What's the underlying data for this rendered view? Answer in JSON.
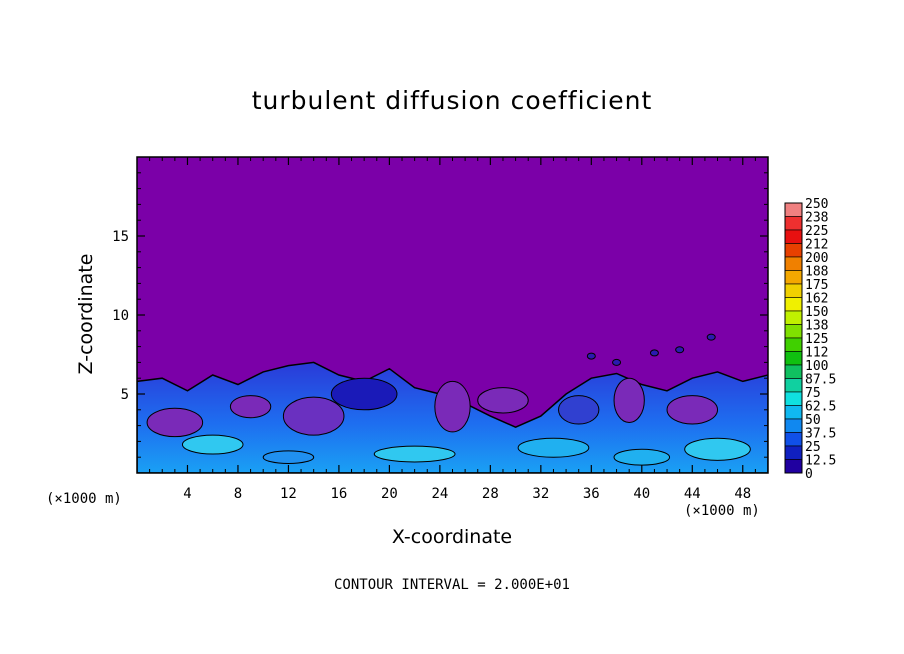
{
  "chart_data": {
    "type": "heatmap",
    "title": "turbulent diffusion coefficient",
    "xlabel": "X-coordinate",
    "ylabel": "Z-coordinate",
    "x_unit": "(×1000 m)",
    "x_unit_right": "(×1000 m)",
    "xlim": [
      0,
      50
    ],
    "ylim": [
      0,
      20
    ],
    "x_ticks": [
      4,
      8,
      12,
      16,
      20,
      24,
      28,
      32,
      36,
      40,
      44,
      48
    ],
    "y_ticks": [
      5,
      10,
      15
    ],
    "contour_interval_text": "CONTOUR INTERVAL = 2.000E+01",
    "colorbar": {
      "labels": [
        "250",
        "238",
        "225",
        "212",
        "200",
        "188",
        "175",
        "162",
        "150",
        "138",
        "125",
        "112",
        "100",
        "87.5",
        "75",
        "62.5",
        "50",
        "37.5",
        "25",
        "12.5",
        "0"
      ],
      "colors": [
        "#f08080",
        "#ee3030",
        "#e81010",
        "#e84000",
        "#f08000",
        "#f4a800",
        "#f0d000",
        "#f0f000",
        "#c0f000",
        "#80e000",
        "#40d000",
        "#10c010",
        "#10c060",
        "#10d0a0",
        "#10e0e0",
        "#10b8f0",
        "#1088f0",
        "#1050e8",
        "#1020c0",
        "#2000a0",
        "#7b00a8"
      ]
    },
    "background_value": 0,
    "boundary_layer_top_km": [
      5.8,
      6.0,
      5.2,
      6.2,
      5.6,
      6.4,
      6.8,
      7.0,
      6.2,
      5.8,
      6.6,
      5.4,
      5.0,
      4.4,
      3.6,
      2.9,
      3.6,
      5.0,
      6.0,
      6.3,
      5.6,
      5.2,
      6.0,
      6.4,
      5.8,
      6.2
    ]
  }
}
